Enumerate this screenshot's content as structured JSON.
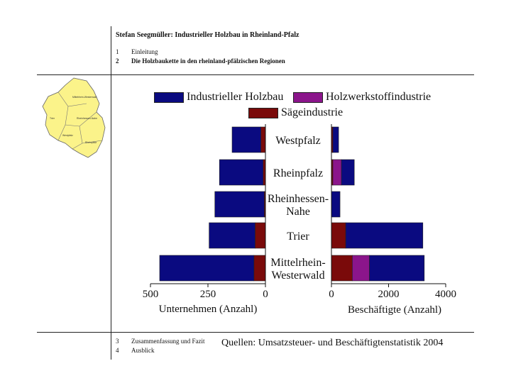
{
  "header": {
    "title": "Stefan Seegmüller: Industrieller Holzbau in Rheinland-Pfalz",
    "toc_top": [
      {
        "num": "1",
        "label": "Einleitung",
        "bold": false
      },
      {
        "num": "2",
        "label": "Die Holzbaukette in den rheinland-pfälzischen Regionen",
        "bold": true
      }
    ]
  },
  "footer": {
    "toc_bottom": [
      {
        "num": "3",
        "label": "Zusammenfassung und Fazit"
      },
      {
        "num": "4",
        "label": "Ausblick"
      }
    ],
    "source": "Quellen: Umsatzsteuer- und Beschäftigtenstatistik 2004"
  },
  "map_labels": [
    "Mittelrhein-Westerwald",
    "Trier",
    "Rheinhessen-Nahe",
    "Westpfalz",
    "Rheinpfalz"
  ],
  "colors": {
    "Industrieller Holzbau": "#0a0a80",
    "Holzwerkstoffindustrie": "#8b158b",
    "Sägeindustrie": "#7a0a0a",
    "map_fill": "#fbf38a"
  },
  "chart_data": {
    "type": "bar",
    "orientation": "horizontal",
    "stacked": true,
    "legend": [
      "Industrieller Holzbau",
      "Holzwerkstoffindustrie",
      "Sägeindustrie"
    ],
    "legend_position": "top",
    "categories": [
      [
        "Westpfalz"
      ],
      [
        "Rheinpfalz"
      ],
      [
        "Rheinhessen-",
        "Nahe"
      ],
      [
        "Trier"
      ],
      [
        "Mittelrhein-",
        "Westerwald"
      ]
    ],
    "left_panel": {
      "xlabel": "Unternehmen (Anzahl)",
      "xlim": [
        500,
        0
      ],
      "ticks": [
        500,
        250,
        0
      ],
      "series": [
        {
          "name": "Sägeindustrie",
          "values": [
            20,
            10,
            5,
            45,
            50
          ]
        },
        {
          "name": "Holzwerkstoffindustrie",
          "values": [
            0,
            0,
            0,
            0,
            0
          ]
        },
        {
          "name": "Industrieller Holzbau",
          "values": [
            125,
            190,
            215,
            200,
            410
          ]
        }
      ]
    },
    "right_panel": {
      "xlabel": "Beschäftigte (Anzahl)",
      "xlim": [
        0,
        4000
      ],
      "ticks": [
        0,
        2000,
        4000
      ],
      "series": [
        {
          "name": "Sägeindustrie",
          "values": [
            50,
            50,
            0,
            500,
            730
          ]
        },
        {
          "name": "Holzwerkstoffindustrie",
          "values": [
            0,
            300,
            0,
            0,
            600
          ]
        },
        {
          "name": "Industrieller Holzbau",
          "values": [
            200,
            450,
            300,
            2700,
            1920
          ]
        }
      ]
    }
  }
}
